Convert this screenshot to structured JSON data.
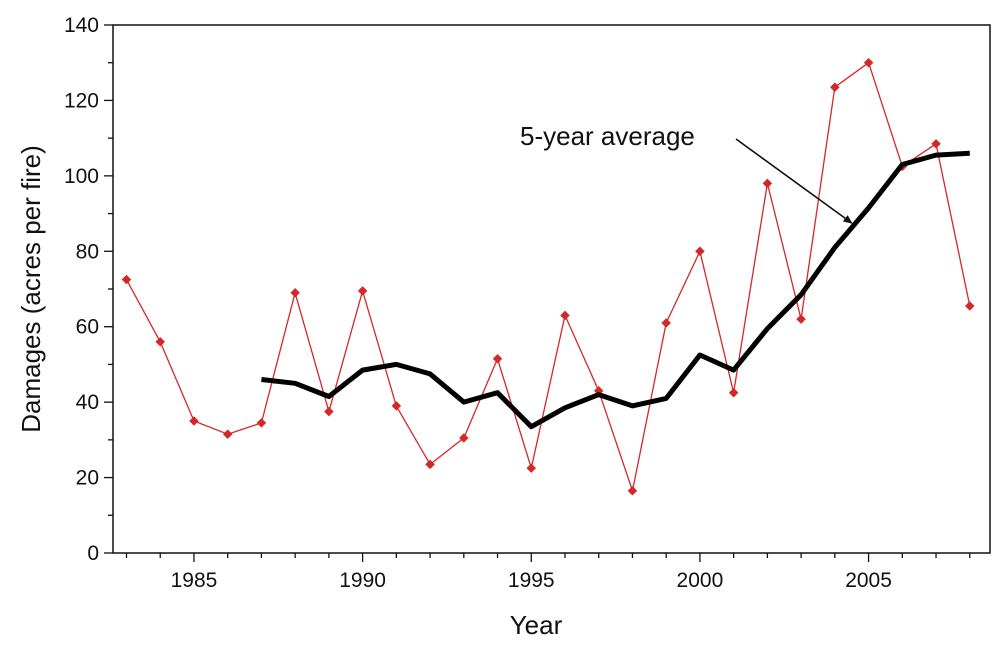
{
  "chart_data": {
    "type": "line",
    "title": "",
    "xlabel": "Year",
    "ylabel": "Damages (acres per fire)",
    "xlim": [
      1982.6,
      2008.6
    ],
    "ylim": [
      0,
      140
    ],
    "x_ticks": [
      1985,
      1990,
      1995,
      2000,
      2005
    ],
    "y_ticks": [
      0,
      20,
      40,
      60,
      80,
      100,
      120,
      140
    ],
    "grid": false,
    "legend": "none",
    "series": [
      {
        "name": "",
        "color": "#d62728",
        "marker": "diamond",
        "x": [
          1983,
          1984,
          1985,
          1986,
          1987,
          1988,
          1989,
          1990,
          1991,
          1992,
          1993,
          1994,
          1995,
          1996,
          1997,
          1998,
          1999,
          2000,
          2001,
          2002,
          2003,
          2004,
          2005,
          2006,
          2007,
          2008
        ],
        "y": [
          72.5,
          56,
          35,
          31.5,
          34.5,
          69,
          37.5,
          69.5,
          39,
          23.5,
          30.5,
          51.5,
          22.5,
          63,
          43,
          16.5,
          61,
          80,
          42.5,
          98,
          62,
          123.5,
          130,
          102.5,
          108.5,
          65.5
        ]
      },
      {
        "name": "5-year average",
        "color": "#000000",
        "marker": "none",
        "x": [
          1987,
          1988,
          1989,
          1990,
          1991,
          1992,
          1993,
          1994,
          1995,
          1996,
          1997,
          1998,
          1999,
          2000,
          2001,
          2002,
          2003,
          2004,
          2005,
          2006,
          2007,
          2008
        ],
        "y": [
          46,
          45,
          41.5,
          48.5,
          50,
          47.5,
          40,
          42.5,
          33.5,
          38.5,
          42,
          39,
          41,
          52.5,
          48.5,
          59.5,
          68.5,
          81,
          91.5,
          103,
          105.5,
          106
        ]
      }
    ],
    "annotations": [
      {
        "text": "5-year average",
        "target_x": 2004.5,
        "target_y": 87.5
      }
    ]
  }
}
